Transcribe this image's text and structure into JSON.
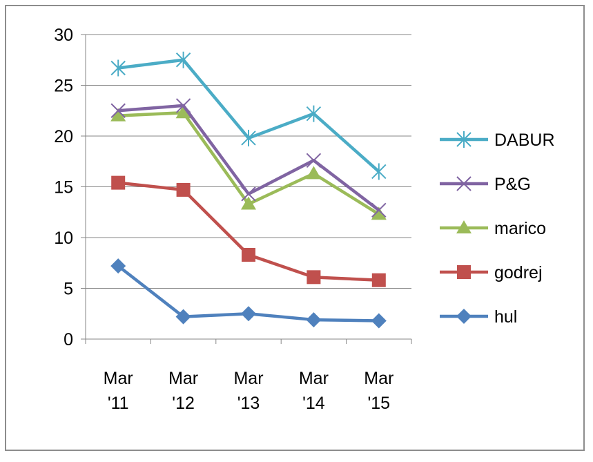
{
  "chart_data": {
    "type": "line",
    "title": "",
    "xlabel": "",
    "ylabel": "",
    "ylim": [
      0,
      30
    ],
    "yticks": [
      0,
      5,
      10,
      15,
      20,
      25,
      30
    ],
    "grid": true,
    "legend_position": "right",
    "categories": [
      [
        "Mar",
        "'11"
      ],
      [
        "Mar",
        "'12"
      ],
      [
        "Mar",
        "'13"
      ],
      [
        "Mar",
        "'14"
      ],
      [
        "Mar",
        "'15"
      ]
    ],
    "series": [
      {
        "name": "DABUR",
        "color": "#4bacc6",
        "marker": "asterisk",
        "values": [
          26.7,
          27.5,
          19.8,
          22.2,
          16.5
        ]
      },
      {
        "name": "P&G",
        "color": "#8064a2",
        "marker": "x",
        "values": [
          22.5,
          23.0,
          14.3,
          17.6,
          12.7
        ]
      },
      {
        "name": "marico",
        "color": "#9bbb59",
        "marker": "triangle",
        "values": [
          22.0,
          22.3,
          13.3,
          16.3,
          12.3
        ]
      },
      {
        "name": "godrej",
        "color": "#c0504d",
        "marker": "square",
        "values": [
          15.4,
          14.7,
          8.3,
          6.1,
          5.8
        ]
      },
      {
        "name": "hul",
        "color": "#4f81bd",
        "marker": "diamond",
        "values": [
          7.2,
          2.2,
          2.5,
          1.9,
          1.8
        ]
      }
    ]
  }
}
